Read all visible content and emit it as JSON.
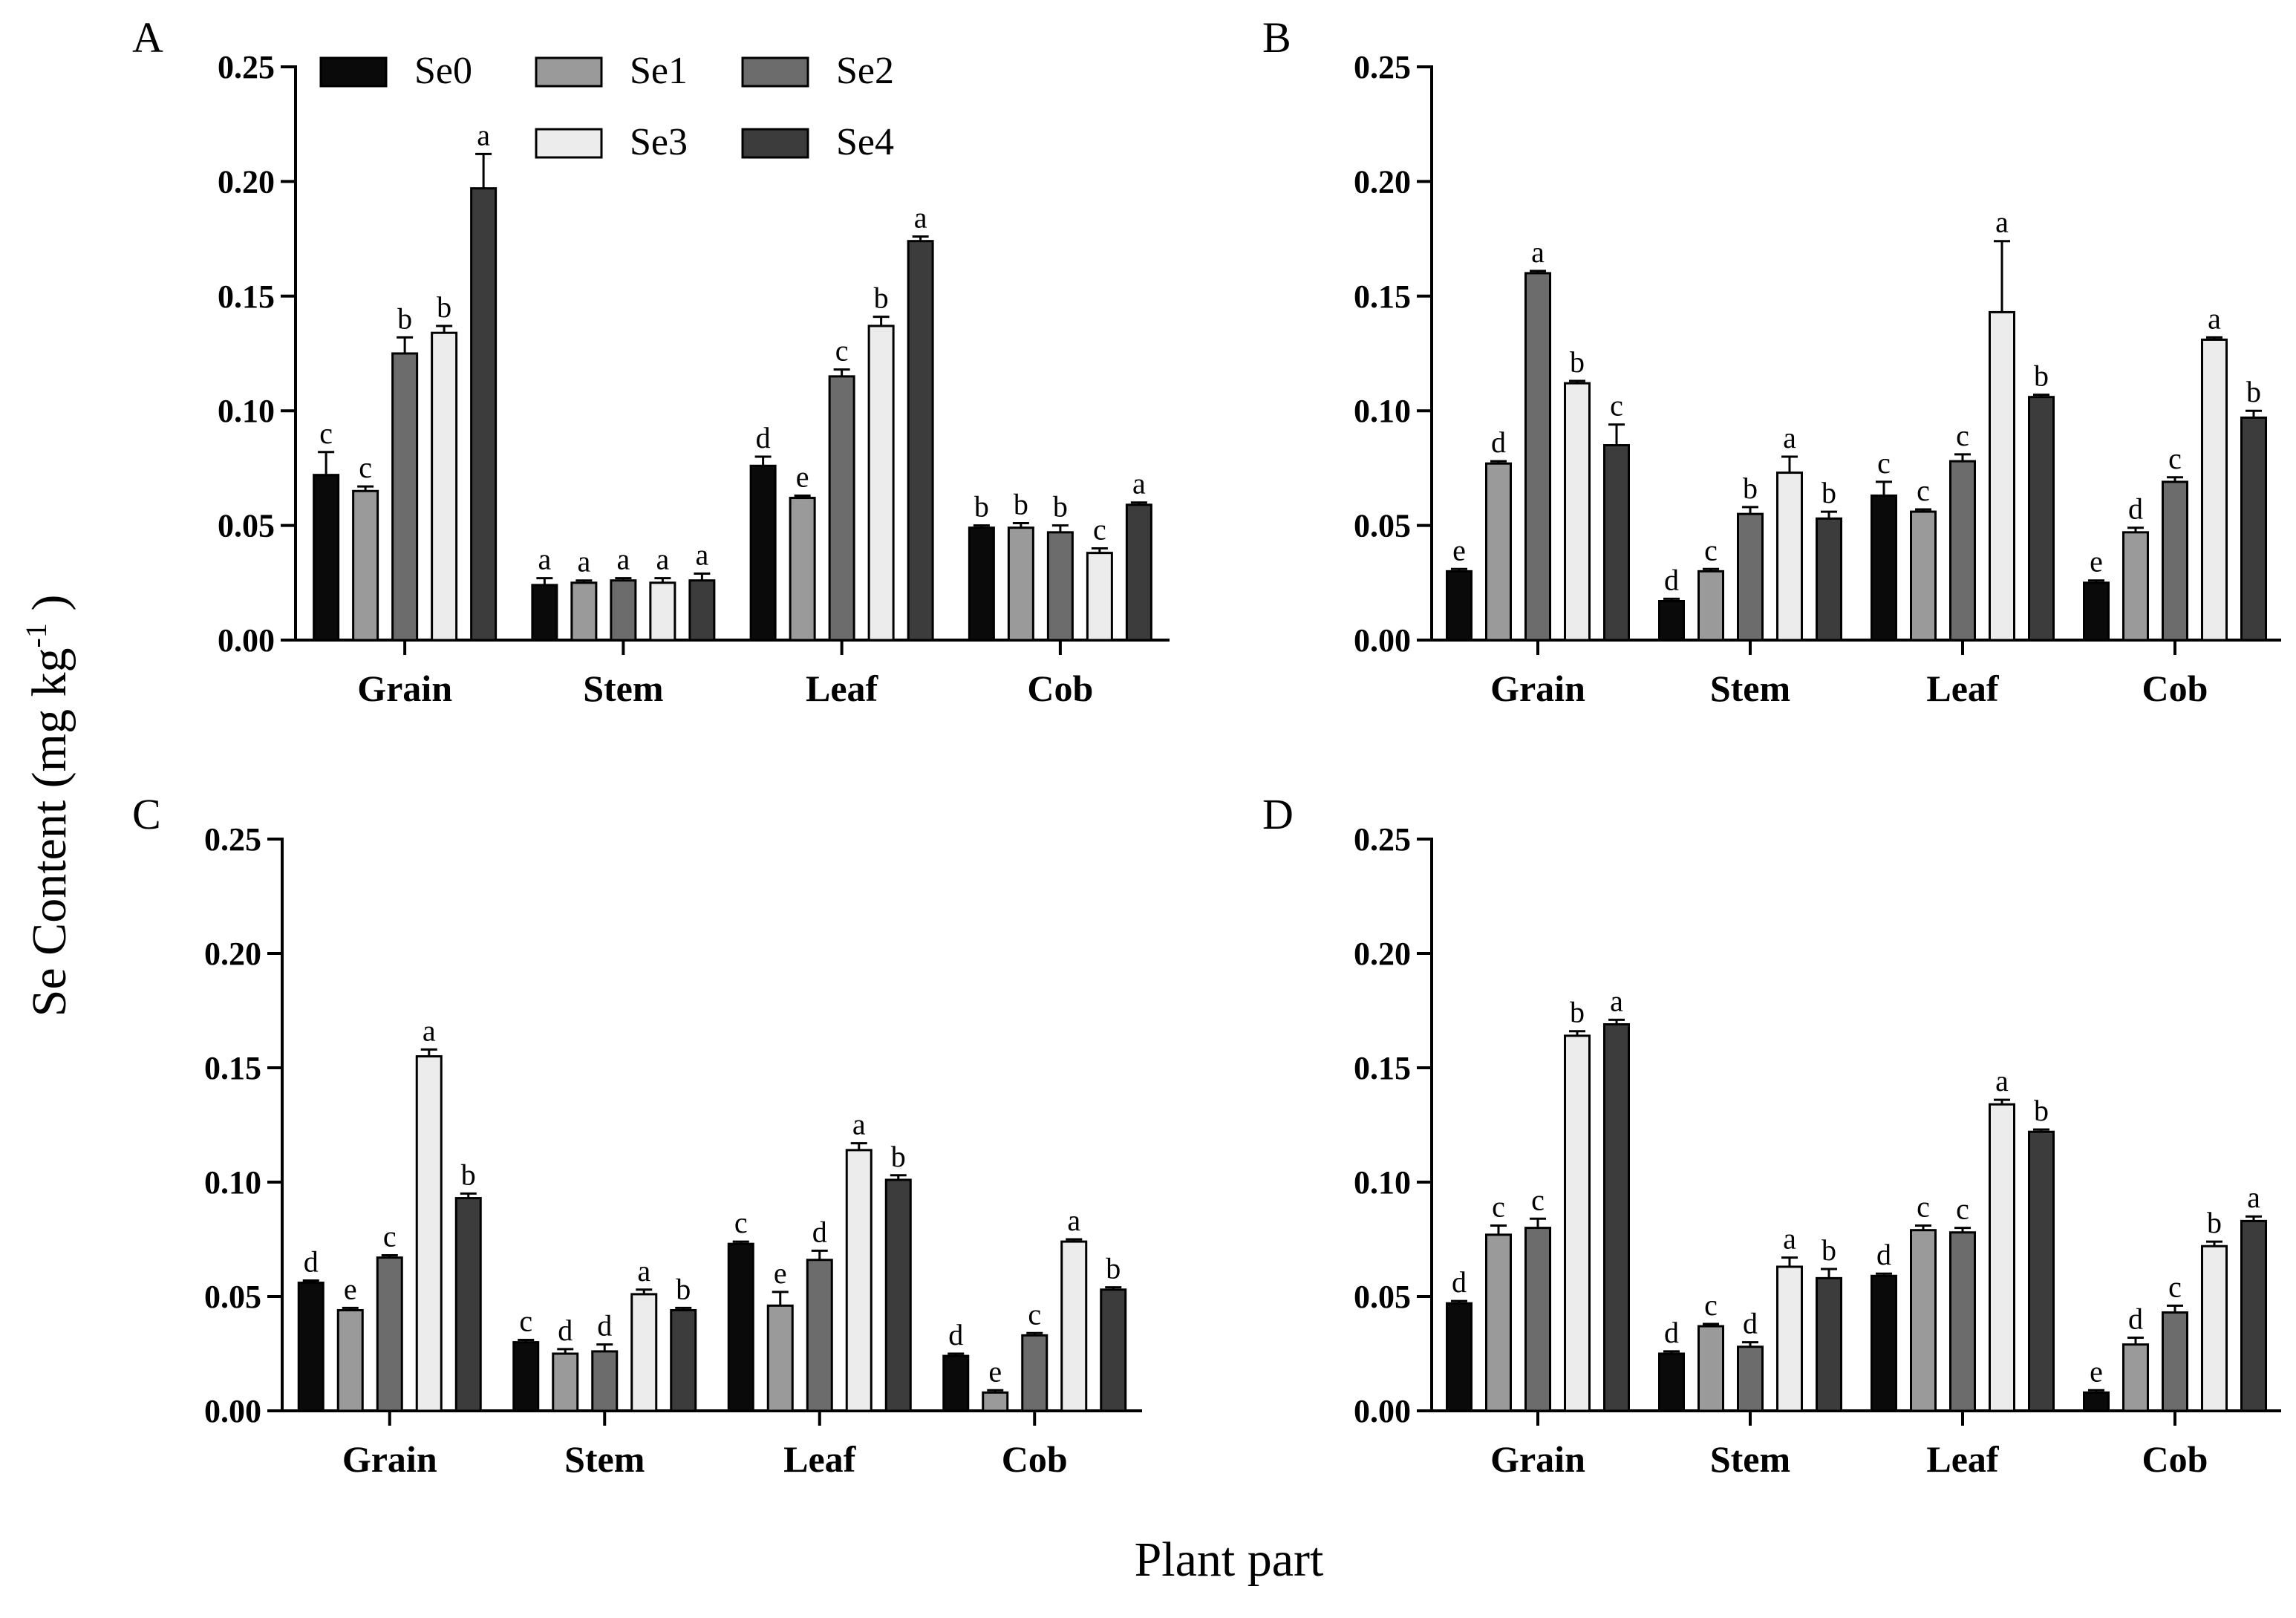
{
  "figure": {
    "ylabel_main": "Se Content (mg kg",
    "ylabel_superscript": "-1",
    "ylabel_close": " )",
    "xlabel": "Plant part"
  },
  "legend": {
    "items": [
      {
        "label": "Se0",
        "color": "#0a0a0a"
      },
      {
        "label": "Se1",
        "color": "#9a9a9a"
      },
      {
        "label": "Se2",
        "color": "#6c6c6c"
      },
      {
        "label": "Se3",
        "color": "#ececec"
      },
      {
        "label": "Se4",
        "color": "#3c3c3c"
      }
    ]
  },
  "chart_data": [
    {
      "panel": "A",
      "type": "bar",
      "categories": [
        "Grain",
        "Stem",
        "Leaf",
        "Cob"
      ],
      "ylim": [
        0,
        0.25
      ],
      "yticks": [
        "0.00",
        "0.05",
        "0.10",
        "0.15",
        "0.20",
        "0.25"
      ],
      "series": [
        {
          "name": "Se0",
          "values": [
            0.072,
            0.024,
            0.076,
            0.049
          ],
          "errors": [
            0.01,
            0.003,
            0.004,
            0.001
          ],
          "letters": [
            "c",
            "a",
            "d",
            "b"
          ]
        },
        {
          "name": "Se1",
          "values": [
            0.065,
            0.025,
            0.062,
            0.049
          ],
          "errors": [
            0.002,
            0.001,
            0.001,
            0.002
          ],
          "letters": [
            "c",
            "a",
            "e",
            "b"
          ]
        },
        {
          "name": "Se2",
          "values": [
            0.125,
            0.026,
            0.115,
            0.047
          ],
          "errors": [
            0.007,
            0.001,
            0.003,
            0.003
          ],
          "letters": [
            "b",
            "a",
            "c",
            "b"
          ]
        },
        {
          "name": "Se3",
          "values": [
            0.134,
            0.025,
            0.137,
            0.038
          ],
          "errors": [
            0.003,
            0.002,
            0.004,
            0.002
          ],
          "letters": [
            "b",
            "a",
            "b",
            "c"
          ]
        },
        {
          "name": "Se4",
          "values": [
            0.197,
            0.026,
            0.174,
            0.059
          ],
          "errors": [
            0.015,
            0.003,
            0.002,
            0.001
          ],
          "letters": [
            "a",
            "a",
            "a",
            "a"
          ]
        }
      ]
    },
    {
      "panel": "B",
      "type": "bar",
      "categories": [
        "Grain",
        "Stem",
        "Leaf",
        "Cob"
      ],
      "ylim": [
        0,
        0.25
      ],
      "yticks": [
        "0.00",
        "0.05",
        "0.10",
        "0.15",
        "0.20",
        "0.25"
      ],
      "series": [
        {
          "name": "Se0",
          "values": [
            0.03,
            0.017,
            0.063,
            0.025
          ],
          "errors": [
            0.001,
            0.001,
            0.006,
            0.001
          ],
          "letters": [
            "e",
            "d",
            "c",
            "e"
          ]
        },
        {
          "name": "Se1",
          "values": [
            0.077,
            0.03,
            0.056,
            0.047
          ],
          "errors": [
            0.001,
            0.001,
            0.001,
            0.002
          ],
          "letters": [
            "d",
            "c",
            "c",
            "d"
          ]
        },
        {
          "name": "Se2",
          "values": [
            0.16,
            0.055,
            0.078,
            0.069
          ],
          "errors": [
            0.001,
            0.003,
            0.003,
            0.002
          ],
          "letters": [
            "a",
            "b",
            "c",
            "c"
          ]
        },
        {
          "name": "Se3",
          "values": [
            0.112,
            0.073,
            0.143,
            0.131
          ],
          "errors": [
            0.001,
            0.007,
            0.031,
            0.001
          ],
          "letters": [
            "b",
            "a",
            "a",
            "a"
          ]
        },
        {
          "name": "Se4",
          "values": [
            0.085,
            0.053,
            0.106,
            0.097
          ],
          "errors": [
            0.009,
            0.003,
            0.001,
            0.003
          ],
          "letters": [
            "c",
            "b",
            "b",
            "b"
          ]
        }
      ]
    },
    {
      "panel": "C",
      "type": "bar",
      "categories": [
        "Grain",
        "Stem",
        "Leaf",
        "Cob"
      ],
      "ylim": [
        0,
        0.25
      ],
      "yticks": [
        "0.00",
        "0.05",
        "0.10",
        "0.15",
        "0.20",
        "0.25"
      ],
      "series": [
        {
          "name": "Se0",
          "values": [
            0.056,
            0.03,
            0.073,
            0.024
          ],
          "errors": [
            0.001,
            0.001,
            0.001,
            0.001
          ],
          "letters": [
            "d",
            "c",
            "c",
            "d"
          ]
        },
        {
          "name": "Se1",
          "values": [
            0.044,
            0.025,
            0.046,
            0.008
          ],
          "errors": [
            0.001,
            0.002,
            0.006,
            0.001
          ],
          "letters": [
            "e",
            "d",
            "e",
            "e"
          ]
        },
        {
          "name": "Se2",
          "values": [
            0.067,
            0.026,
            0.066,
            0.033
          ],
          "errors": [
            0.001,
            0.003,
            0.004,
            0.001
          ],
          "letters": [
            "c",
            "d",
            "d",
            "c"
          ]
        },
        {
          "name": "Se3",
          "values": [
            0.155,
            0.051,
            0.114,
            0.074
          ],
          "errors": [
            0.003,
            0.002,
            0.003,
            0.001
          ],
          "letters": [
            "a",
            "a",
            "a",
            "a"
          ]
        },
        {
          "name": "Se4",
          "values": [
            0.093,
            0.044,
            0.101,
            0.053
          ],
          "errors": [
            0.002,
            0.001,
            0.002,
            0.001
          ],
          "letters": [
            "b",
            "b",
            "b",
            "b"
          ]
        }
      ]
    },
    {
      "panel": "D",
      "type": "bar",
      "categories": [
        "Grain",
        "Stem",
        "Leaf",
        "Cob"
      ],
      "ylim": [
        0,
        0.25
      ],
      "yticks": [
        "0.00",
        "0.05",
        "0.10",
        "0.15",
        "0.20",
        "0.25"
      ],
      "series": [
        {
          "name": "Se0",
          "values": [
            0.047,
            0.025,
            0.059,
            0.008
          ],
          "errors": [
            0.001,
            0.001,
            0.001,
            0.001
          ],
          "letters": [
            "d",
            "d",
            "d",
            "e"
          ]
        },
        {
          "name": "Se1",
          "values": [
            0.077,
            0.037,
            0.079,
            0.029
          ],
          "errors": [
            0.004,
            0.001,
            0.002,
            0.003
          ],
          "letters": [
            "c",
            "c",
            "c",
            "d"
          ]
        },
        {
          "name": "Se2",
          "values": [
            0.08,
            0.028,
            0.078,
            0.043
          ],
          "errors": [
            0.004,
            0.002,
            0.002,
            0.003
          ],
          "letters": [
            "c",
            "d",
            "c",
            "c"
          ]
        },
        {
          "name": "Se3",
          "values": [
            0.164,
            0.063,
            0.134,
            0.072
          ],
          "errors": [
            0.002,
            0.004,
            0.002,
            0.002
          ],
          "letters": [
            "b",
            "a",
            "a",
            "b"
          ]
        },
        {
          "name": "Se4",
          "values": [
            0.169,
            0.058,
            0.122,
            0.083
          ],
          "errors": [
            0.002,
            0.004,
            0.001,
            0.002
          ],
          "letters": [
            "a",
            "b",
            "b",
            "a"
          ]
        }
      ]
    }
  ]
}
